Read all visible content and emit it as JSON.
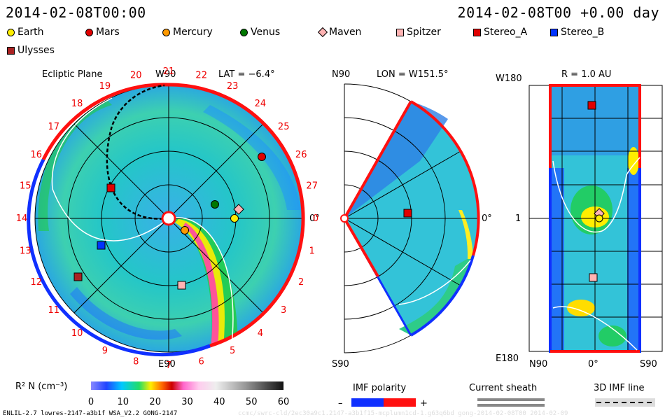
{
  "header": {
    "left_datetime": "2014-02-08T00:00",
    "right_datetime": "2014-02-08T00 +0.00 day"
  },
  "legend": [
    {
      "label": "Earth",
      "color": "#ffee00",
      "shape": "circle"
    },
    {
      "label": "Mars",
      "color": "#e00000",
      "shape": "circle"
    },
    {
      "label": "Mercury",
      "color": "#ff9900",
      "shape": "circle"
    },
    {
      "label": "Venus",
      "color": "#007700",
      "shape": "circle"
    },
    {
      "label": "Maven",
      "color": "#ffb3b3",
      "shape": "diamond"
    },
    {
      "label": "Spitzer",
      "color": "#ffb3b3",
      "shape": "square"
    },
    {
      "label": "Stereo_A",
      "color": "#e00000",
      "shape": "square"
    },
    {
      "label": "Stereo_B",
      "color": "#0033ff",
      "shape": "square"
    },
    {
      "label": "Ulysses",
      "color": "#aa2222",
      "shape": "square"
    }
  ],
  "panel1": {
    "title": "Ecliptic Plane",
    "top_label": "W90",
    "lat_label": "LAT = −6.4°",
    "bottom_label": "E90",
    "right_label": "0°",
    "clock_numbers": [
      "20",
      "21",
      "22",
      "23",
      "24",
      "25",
      "26",
      "27",
      "0",
      "1",
      "2",
      "3",
      "4",
      "5",
      "6",
      "7",
      "8",
      "9",
      "10",
      "11",
      "12",
      "13",
      "14",
      "15",
      "16",
      "17",
      "18",
      "19"
    ]
  },
  "panel2": {
    "top_left": "N90",
    "lon_label": "LON = W151.5°",
    "bottom_left": "S90",
    "right_label": "0°"
  },
  "panel3": {
    "top_left": "W180",
    "r_label": "R = 1.0 AU",
    "mid_left": "1",
    "bottom_left": "E180",
    "x_left": "N90",
    "x_mid": "0°",
    "x_right": "S90"
  },
  "colorbar": {
    "label": "R² N (cm⁻³)",
    "ticks": [
      "0",
      "10",
      "20",
      "30",
      "40",
      "50",
      "60"
    ]
  },
  "bottom_legend": {
    "imf_title": "IMF polarity",
    "imf_minus": "–",
    "imf_plus": "+",
    "sheath_title": "Current sheath",
    "line_title": "3D IMF line"
  },
  "footer": "ENLIL-2.7 lowres-2147-a3b1f WSA_V2.2 GONG-2147",
  "watermark": "ccmc/swrc-cld/2ec30a9c1.2147-a3b1f15-mcplumn1cd-1.g63q6bd gong-2014-02-08T00    2014-02-09"
}
